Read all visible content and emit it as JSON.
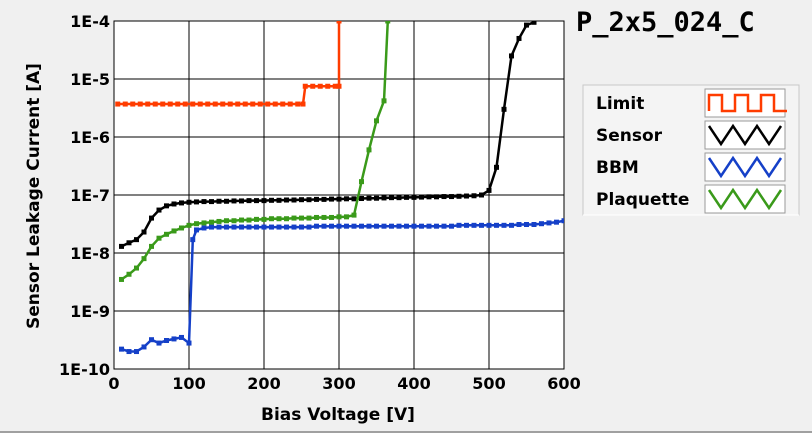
{
  "chart_data": {
    "type": "line",
    "title": "P_2x5_024_C",
    "xlabel": "Bias Voltage [V]",
    "ylabel": "Sensor Leakage Current [A]",
    "xlim": [
      0,
      600
    ],
    "ylim": [
      1e-10,
      0.0001
    ],
    "y_scale": "log",
    "grid": true,
    "legend_position": "right",
    "x_ticks": [
      0,
      100,
      200,
      300,
      400,
      500,
      600
    ],
    "x_tick_labels": [
      "0",
      "100",
      "200",
      "300",
      "400",
      "500",
      "600"
    ],
    "y_ticks": [
      1e-10,
      1e-09,
      1e-08,
      1e-07,
      1e-06,
      1e-05,
      0.0001
    ],
    "y_tick_labels": [
      "1E-10",
      "1E-9",
      "1E-8",
      "1E-7",
      "1E-6",
      "1E-5",
      "1E-4"
    ],
    "series": [
      {
        "name": "Limit",
        "color": "#ff3c00",
        "x": [
          5,
          15,
          25,
          35,
          45,
          55,
          65,
          75,
          85,
          95,
          105,
          115,
          125,
          135,
          145,
          155,
          165,
          175,
          185,
          195,
          205,
          215,
          225,
          235,
          245,
          252,
          255,
          265,
          275,
          285,
          295,
          300,
          300
        ],
        "y": [
          3.7e-06,
          3.7e-06,
          3.7e-06,
          3.7e-06,
          3.7e-06,
          3.7e-06,
          3.7e-06,
          3.7e-06,
          3.7e-06,
          3.7e-06,
          3.7e-06,
          3.7e-06,
          3.7e-06,
          3.7e-06,
          3.7e-06,
          3.7e-06,
          3.7e-06,
          3.7e-06,
          3.7e-06,
          3.7e-06,
          3.7e-06,
          3.7e-06,
          3.7e-06,
          3.7e-06,
          3.7e-06,
          3.7e-06,
          7.5e-06,
          7.5e-06,
          7.5e-06,
          7.5e-06,
          7.5e-06,
          7.5e-06,
          0.0001
        ]
      },
      {
        "name": "Sensor",
        "color": "#000000",
        "x": [
          10,
          20,
          30,
          40,
          50,
          60,
          70,
          80,
          90,
          100,
          110,
          120,
          130,
          140,
          150,
          160,
          170,
          180,
          190,
          200,
          210,
          220,
          230,
          240,
          250,
          260,
          270,
          280,
          290,
          300,
          310,
          320,
          330,
          340,
          350,
          360,
          370,
          380,
          390,
          400,
          410,
          420,
          430,
          440,
          450,
          460,
          470,
          480,
          490,
          500,
          510,
          520,
          530,
          540,
          550,
          560
        ],
        "y": [
          1.3e-08,
          1.5e-08,
          1.7e-08,
          2.3e-08,
          4e-08,
          5.5e-08,
          6.5e-08,
          7e-08,
          7.3e-08,
          7.5e-08,
          7.6e-08,
          7.7e-08,
          7.7e-08,
          7.8e-08,
          7.8e-08,
          7.9e-08,
          7.9e-08,
          8e-08,
          8e-08,
          8e-08,
          8.1e-08,
          8.1e-08,
          8.2e-08,
          8.2e-08,
          8.3e-08,
          8.3e-08,
          8.4e-08,
          8.4e-08,
          8.5e-08,
          8.5e-08,
          8.6e-08,
          8.6e-08,
          8.7e-08,
          8.8e-08,
          8.8e-08,
          8.9e-08,
          9e-08,
          9e-08,
          9.1e-08,
          9.1e-08,
          9.2e-08,
          9.3e-08,
          9.3e-08,
          9.4e-08,
          9.4e-08,
          9.5e-08,
          9.6e-08,
          9.7e-08,
          1e-07,
          1.2e-07,
          3e-07,
          3e-06,
          2.5e-05,
          5e-05,
          8.5e-05,
          9.5e-05
        ]
      },
      {
        "name": "BBM",
        "color": "#1540c8",
        "x": [
          10,
          20,
          30,
          40,
          50,
          60,
          70,
          80,
          90,
          100,
          105,
          110,
          120,
          130,
          140,
          150,
          160,
          170,
          180,
          190,
          200,
          210,
          220,
          230,
          240,
          250,
          260,
          270,
          280,
          290,
          300,
          310,
          320,
          330,
          340,
          350,
          360,
          370,
          380,
          390,
          400,
          410,
          420,
          430,
          440,
          450,
          460,
          470,
          480,
          490,
          500,
          510,
          520,
          530,
          540,
          550,
          560,
          570,
          580,
          590,
          600
        ],
        "y": [
          2.2e-10,
          2e-10,
          2e-10,
          2.4e-10,
          3.2e-10,
          2.8e-10,
          3.1e-10,
          3.3e-10,
          3.5e-10,
          2.8e-10,
          1.7e-08,
          2.5e-08,
          2.7e-08,
          2.8e-08,
          2.8e-08,
          2.8e-08,
          2.8e-08,
          2.8e-08,
          2.8e-08,
          2.8e-08,
          2.8e-08,
          2.8e-08,
          2.8e-08,
          2.8e-08,
          2.8e-08,
          2.8e-08,
          2.8e-08,
          2.9e-08,
          2.9e-08,
          2.9e-08,
          2.9e-08,
          2.9e-08,
          2.9e-08,
          2.9e-08,
          2.9e-08,
          2.9e-08,
          2.9e-08,
          2.9e-08,
          2.9e-08,
          2.9e-08,
          2.9e-08,
          2.9e-08,
          2.9e-08,
          2.9e-08,
          2.9e-08,
          2.9e-08,
          3e-08,
          3e-08,
          3e-08,
          3e-08,
          3e-08,
          3e-08,
          3e-08,
          3e-08,
          3.1e-08,
          3.1e-08,
          3.1e-08,
          3.2e-08,
          3.3e-08,
          3.4e-08,
          3.6e-08
        ]
      },
      {
        "name": "Plaquette",
        "color": "#3a9a1a",
        "x": [
          10,
          20,
          30,
          40,
          50,
          60,
          70,
          80,
          90,
          100,
          110,
          120,
          130,
          140,
          150,
          160,
          170,
          180,
          190,
          200,
          210,
          220,
          230,
          240,
          250,
          260,
          270,
          280,
          290,
          300,
          310,
          320,
          330,
          340,
          350,
          360,
          365
        ],
        "y": [
          3.5e-09,
          4.3e-09,
          5.5e-09,
          8e-09,
          1.3e-08,
          1.8e-08,
          2.1e-08,
          2.4e-08,
          2.7e-08,
          3e-08,
          3.2e-08,
          3.3e-08,
          3.4e-08,
          3.5e-08,
          3.6e-08,
          3.6e-08,
          3.7e-08,
          3.7e-08,
          3.8e-08,
          3.8e-08,
          3.9e-08,
          3.9e-08,
          3.9e-08,
          4e-08,
          4e-08,
          4e-08,
          4.1e-08,
          4.1e-08,
          4.1e-08,
          4.2e-08,
          4.2e-08,
          4.5e-08,
          1.7e-07,
          6e-07,
          1.9e-06,
          4.2e-06,
          0.0001
        ]
      }
    ]
  }
}
